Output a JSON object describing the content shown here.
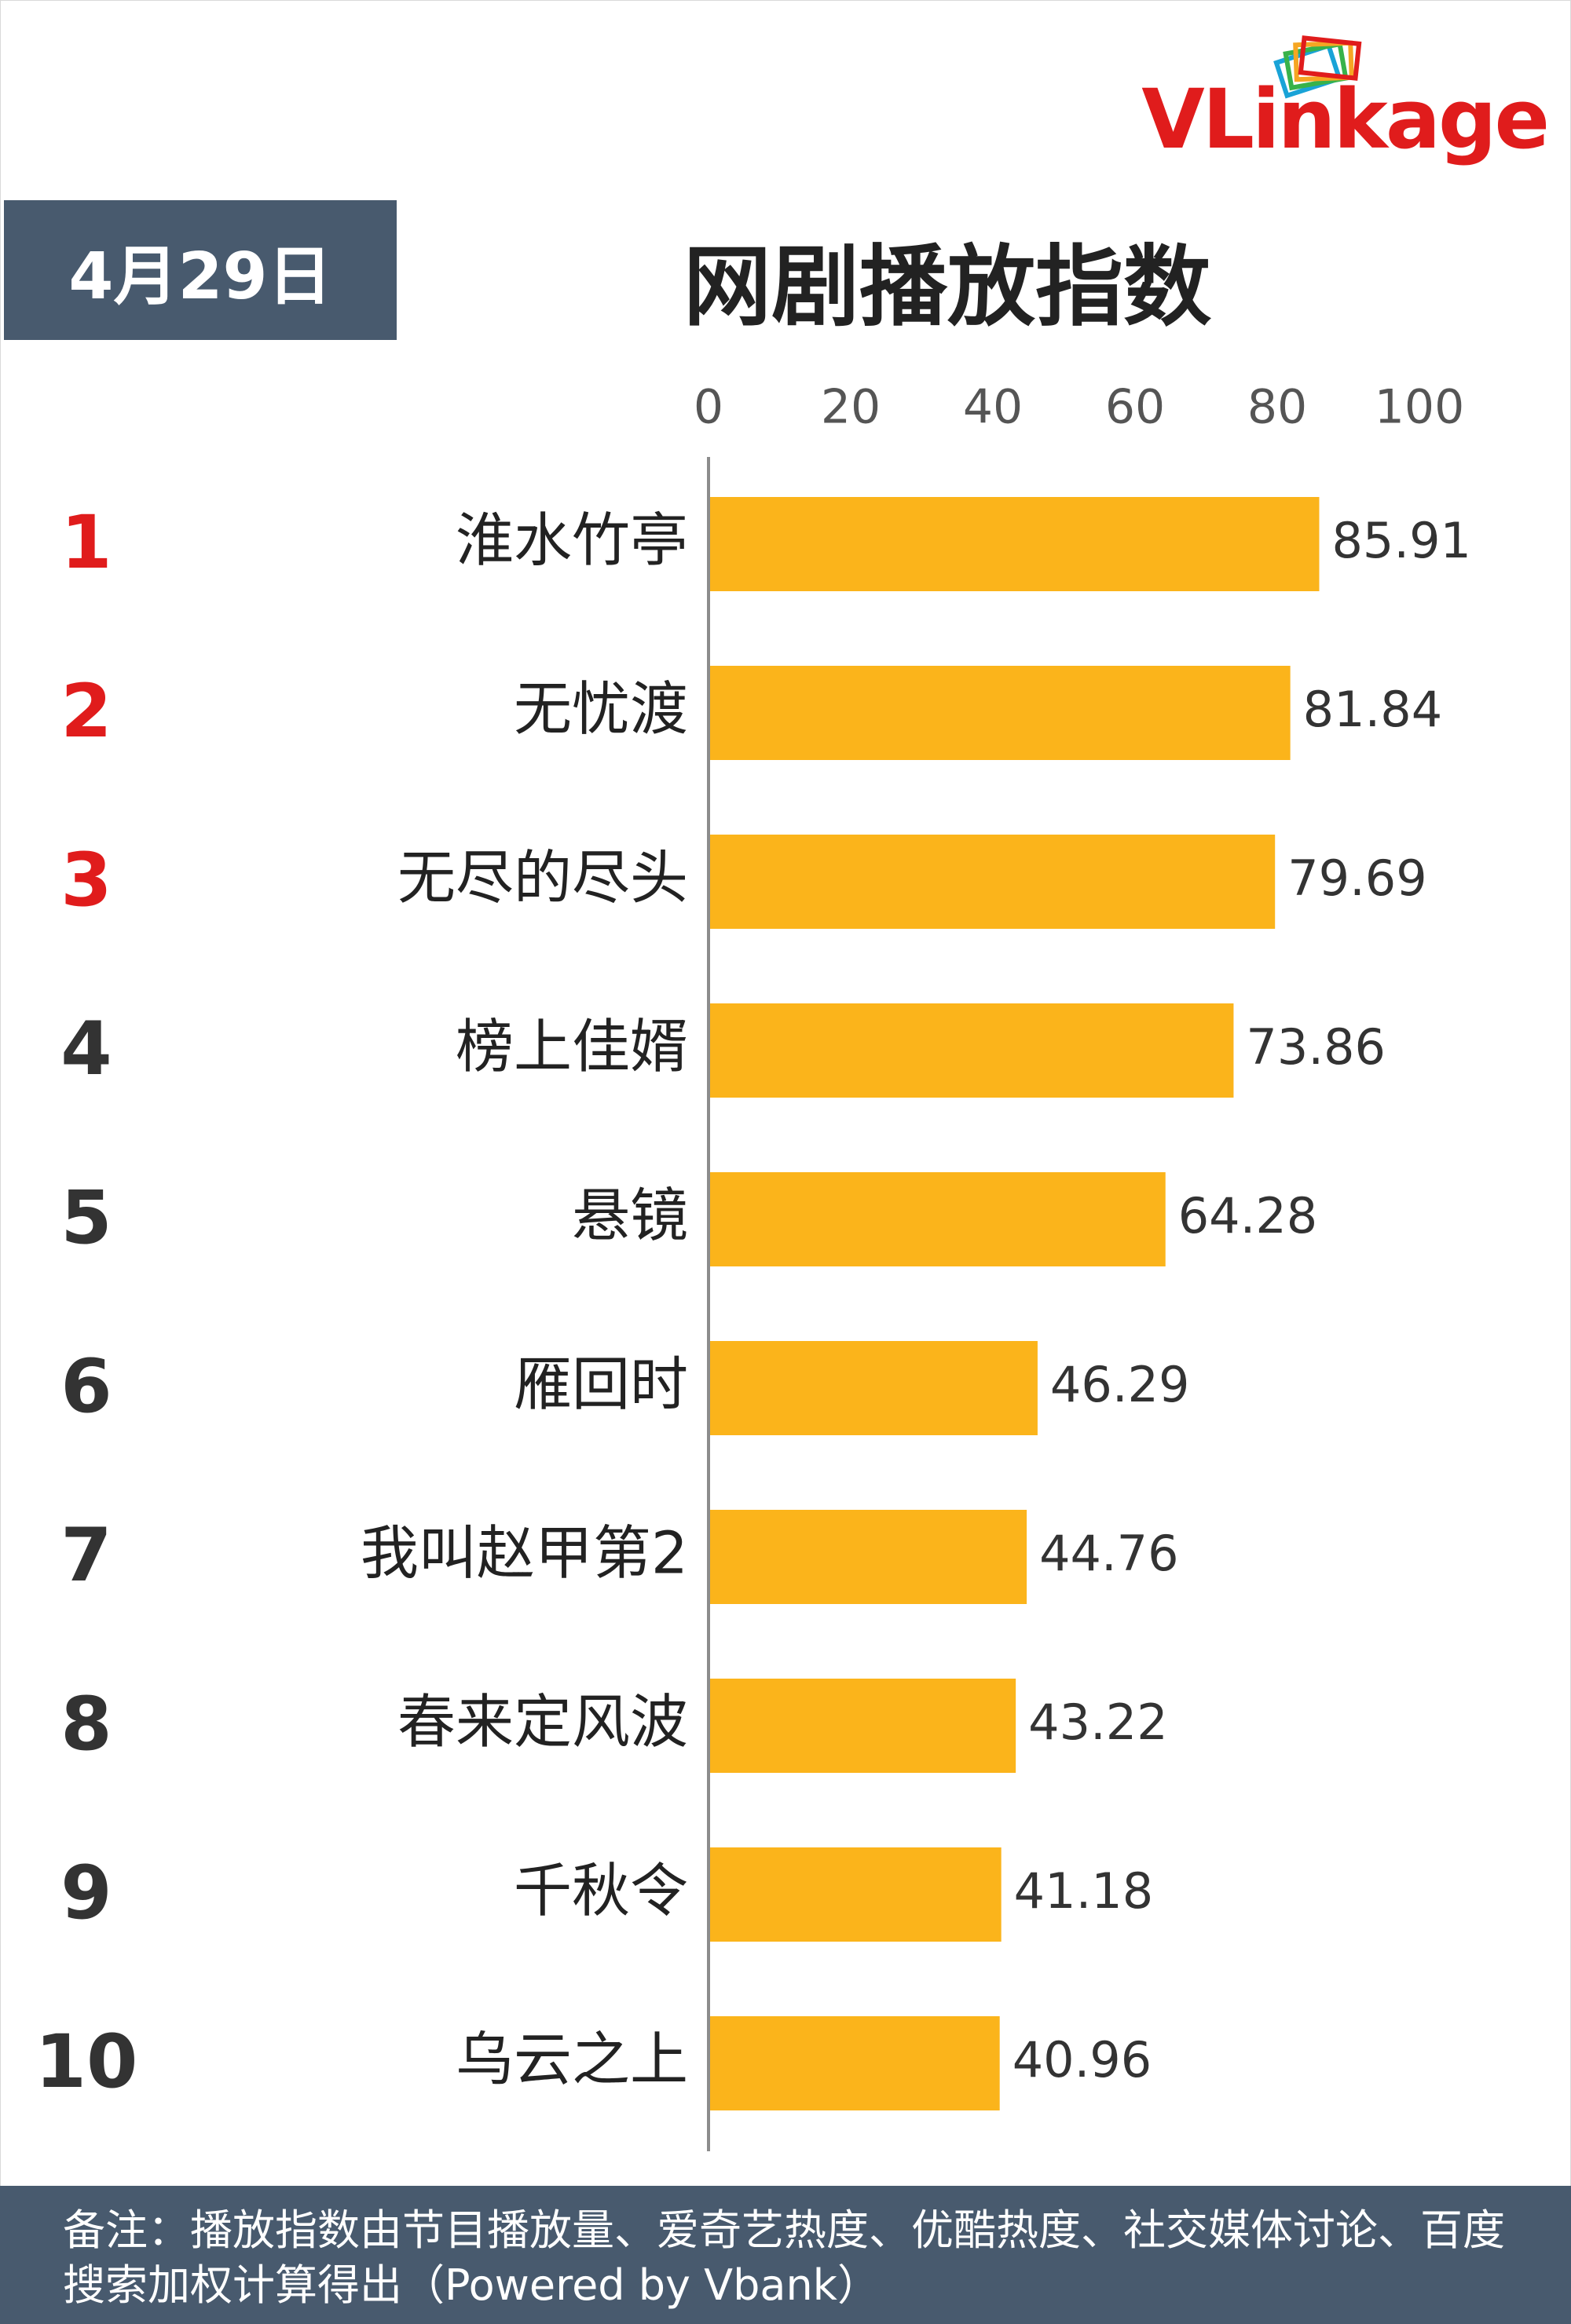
{
  "brand": {
    "logo_text": "VLinkage",
    "logo_part1": "VL",
    "logo_part2": "inkage"
  },
  "header": {
    "date": "4月29日",
    "title": "网剧播放指数"
  },
  "footer": {
    "note": "备注：播放指数由节目播放量、爱奇艺热度、优酷热度、社交媒体讨论、百度搜索加权计算得出（Powered by Vbank）"
  },
  "colors": {
    "bar": "#FBB41B",
    "rank_top": "#E01C1C",
    "rank_other": "#333333",
    "header_bg": "#485A6E"
  },
  "chart_data": {
    "type": "bar",
    "orientation": "horizontal",
    "title": "网剧播放指数",
    "xlim": [
      0,
      100
    ],
    "x_ticks": [
      0,
      20,
      40,
      60,
      80,
      100
    ],
    "tick_labels": [
      "0",
      "20",
      "40",
      "60",
      "80",
      "100"
    ],
    "ranks": [
      "1",
      "2",
      "3",
      "4",
      "5",
      "6",
      "7",
      "8",
      "9",
      "10"
    ],
    "categories": [
      "淮水竹亭",
      "无忧渡",
      "无尽的尽头",
      "榜上佳婿",
      "悬镜",
      "雁回时",
      "我叫赵甲第2",
      "春来定风波",
      "千秋令",
      "乌云之上"
    ],
    "values": [
      85.91,
      81.84,
      79.69,
      73.86,
      64.28,
      46.29,
      44.76,
      43.22,
      41.18,
      40.96
    ],
    "value_labels": [
      "85.91",
      "81.84",
      "79.69",
      "73.86",
      "64.28",
      "46.29",
      "44.76",
      "43.22",
      "41.18",
      "40.96"
    ],
    "grid": false,
    "legend": "none"
  }
}
